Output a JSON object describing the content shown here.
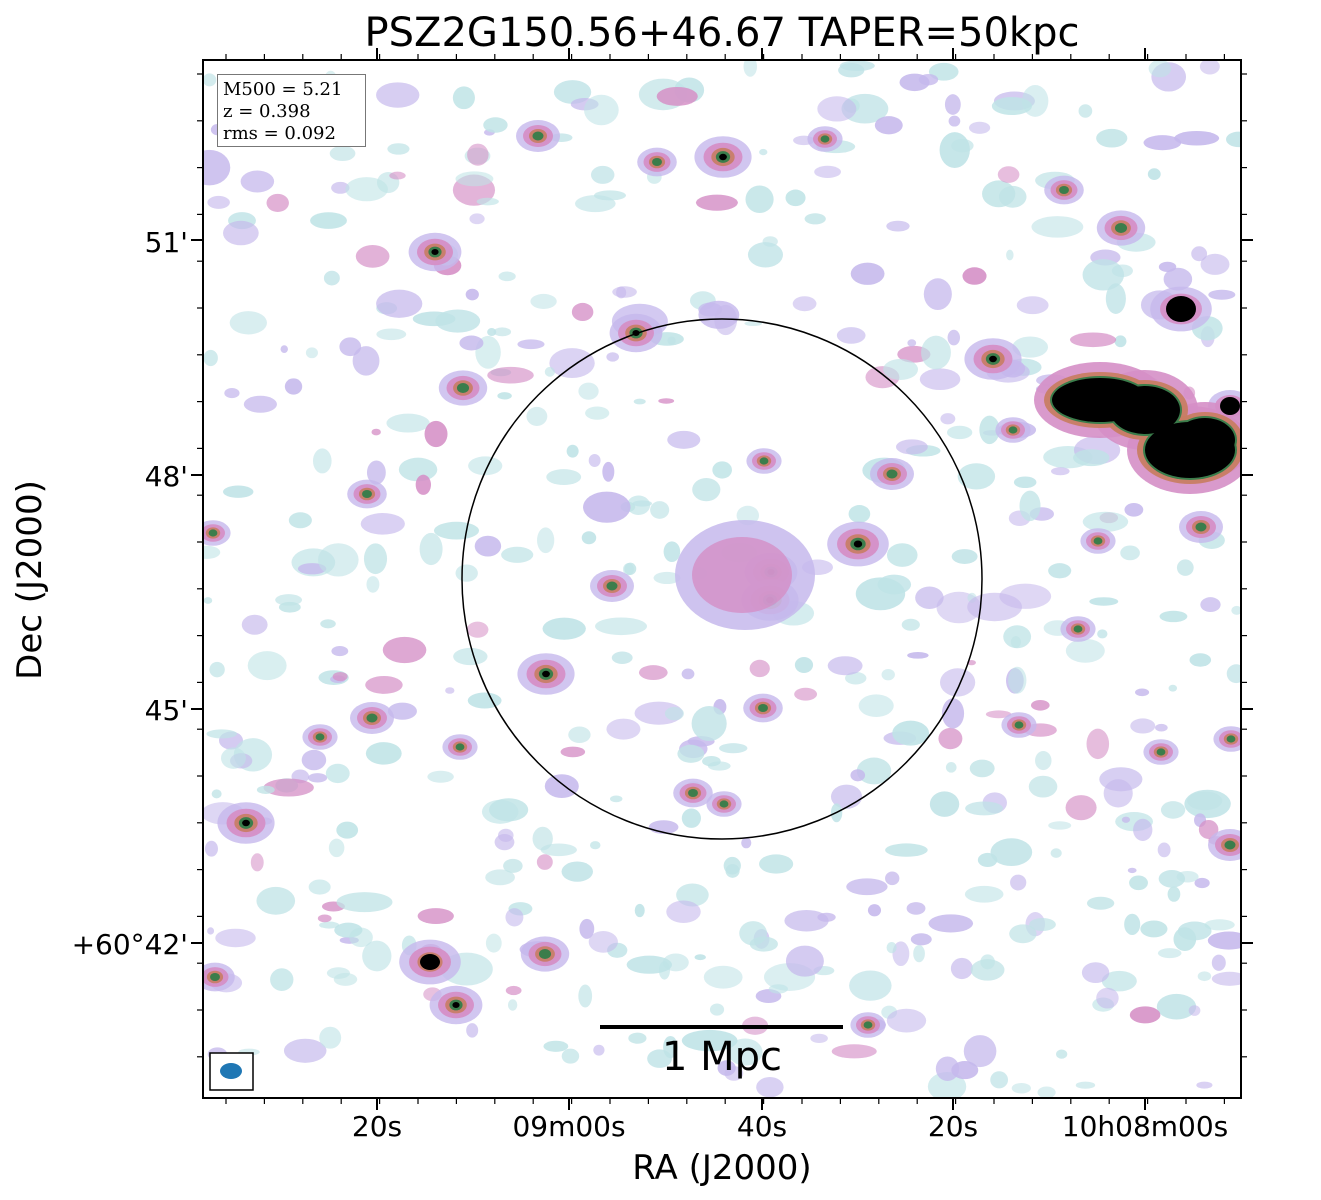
{
  "figure": {
    "title": "PSZ2G150.56+46.67 TAPER=50kpc",
    "xlabel": "RA (J2000)",
    "ylabel": "Dec (J2000)",
    "x_ticks": [
      "20s",
      "09m00s",
      "40s",
      "20s",
      "10h08m00s"
    ],
    "y_ticks": [
      "51'",
      "48'",
      "45'",
      "+60°42'"
    ],
    "info_box": [
      "M500 = 5.21",
      "z = 0.398",
      "rms = 0.092"
    ],
    "scalebar_label": "1 Mpc"
  },
  "colors": {
    "faint": "#bfe3e6",
    "low": "#c5b8ec",
    "mid": "#d58fc6",
    "high": "#c87d63",
    "peak": "#3b7d4b",
    "core": "#000000",
    "beam": "#1f77b4"
  }
}
